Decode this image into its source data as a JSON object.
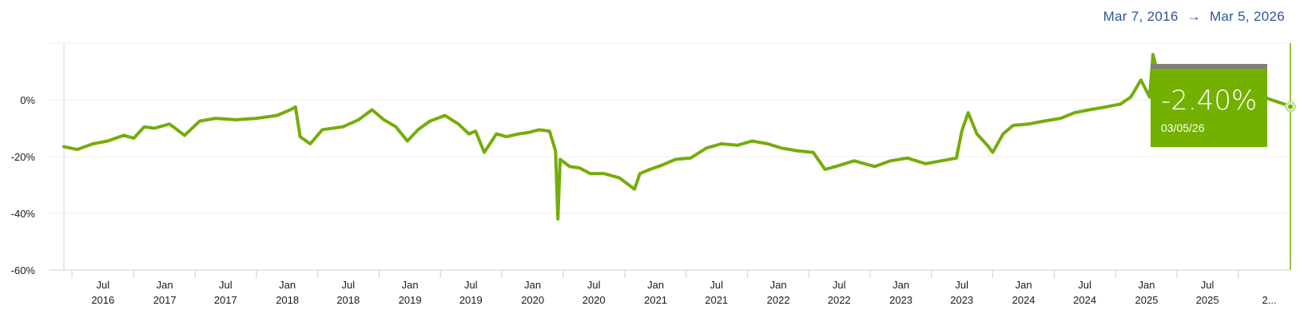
{
  "range": {
    "start": "Mar 7, 2016",
    "arrow": "→",
    "end": "Mar 5, 2026"
  },
  "tooltip": {
    "value": "-2.40%",
    "date": "03/05/26"
  },
  "colors": {
    "line": "#74ad0b",
    "tooltip": "#73b000",
    "tooltip_bar": "#7f7f7f",
    "range_text": "#2f5597"
  },
  "chart_data": {
    "type": "line",
    "y_ticks": [
      "0%",
      "-20%",
      "-40%",
      "-60%"
    ],
    "y_tick_values": [
      0,
      -20,
      -40,
      -60
    ],
    "x_ticks": [
      {
        "date": "2016-07-01",
        "top": "Jul",
        "bottom": "2016"
      },
      {
        "date": "2017-01-01",
        "top": "Jan",
        "bottom": "2017"
      },
      {
        "date": "2017-07-01",
        "top": "Jul",
        "bottom": "2017"
      },
      {
        "date": "2018-01-01",
        "top": "Jan",
        "bottom": "2018"
      },
      {
        "date": "2018-07-01",
        "top": "Jul",
        "bottom": "2018"
      },
      {
        "date": "2019-01-01",
        "top": "Jan",
        "bottom": "2019"
      },
      {
        "date": "2019-07-01",
        "top": "Jul",
        "bottom": "2019"
      },
      {
        "date": "2020-01-01",
        "top": "Jan",
        "bottom": "2020"
      },
      {
        "date": "2020-07-01",
        "top": "Jul",
        "bottom": "2020"
      },
      {
        "date": "2021-01-01",
        "top": "Jan",
        "bottom": "2021"
      },
      {
        "date": "2021-07-01",
        "top": "Jul",
        "bottom": "2021"
      },
      {
        "date": "2022-01-01",
        "top": "Jan",
        "bottom": "2022"
      },
      {
        "date": "2022-07-01",
        "top": "Jul",
        "bottom": "2022"
      },
      {
        "date": "2023-01-01",
        "top": "Jan",
        "bottom": "2023"
      },
      {
        "date": "2023-07-01",
        "top": "Jul",
        "bottom": "2023"
      },
      {
        "date": "2024-01-01",
        "top": "Jan",
        "bottom": "2024"
      },
      {
        "date": "2024-07-01",
        "top": "Jul",
        "bottom": "2024"
      },
      {
        "date": "2025-01-01",
        "top": "Jan",
        "bottom": "2025"
      },
      {
        "date": "2025-07-01",
        "top": "Jul",
        "bottom": "2025"
      },
      {
        "date": "2026-01-01",
        "top": "",
        "bottom": "2..."
      }
    ],
    "x_range": [
      "2016-03-07",
      "2026-03-05"
    ],
    "ylim": [
      -60,
      20
    ],
    "grid": true,
    "series": [
      {
        "points": [
          [
            "2016-03-07",
            -16.5
          ],
          [
            "2016-04-15",
            -17.5
          ],
          [
            "2016-06-01",
            -15.5
          ],
          [
            "2016-07-15",
            -14.5
          ],
          [
            "2016-09-01",
            -12.5
          ],
          [
            "2016-10-01",
            -13.5
          ],
          [
            "2016-11-01",
            -9.5
          ],
          [
            "2016-12-01",
            -10
          ],
          [
            "2017-01-15",
            -8.5
          ],
          [
            "2017-03-01",
            -12.5
          ],
          [
            "2017-04-15",
            -7.5
          ],
          [
            "2017-06-01",
            -6.5
          ],
          [
            "2017-08-01",
            -7
          ],
          [
            "2017-10-01",
            -6.5
          ],
          [
            "2017-12-01",
            -5.5
          ],
          [
            "2018-01-10",
            -3.5
          ],
          [
            "2018-01-25",
            -2.5
          ],
          [
            "2018-02-08",
            -13
          ],
          [
            "2018-03-10",
            -15.5
          ],
          [
            "2018-04-15",
            -10.5
          ],
          [
            "2018-06-15",
            -9.5
          ],
          [
            "2018-08-01",
            -7
          ],
          [
            "2018-09-10",
            -3.5
          ],
          [
            "2018-10-15",
            -7
          ],
          [
            "2018-11-20",
            -9.5
          ],
          [
            "2018-12-24",
            -14.5
          ],
          [
            "2019-01-25",
            -10.5
          ],
          [
            "2019-03-01",
            -7.5
          ],
          [
            "2019-04-15",
            -5.5
          ],
          [
            "2019-05-25",
            -8.5
          ],
          [
            "2019-06-25",
            -12
          ],
          [
            "2019-07-15",
            -11
          ],
          [
            "2019-08-10",
            -18.5
          ],
          [
            "2019-09-15",
            -12
          ],
          [
            "2019-10-15",
            -13
          ],
          [
            "2019-11-20",
            -12
          ],
          [
            "2019-12-20",
            -11.5
          ],
          [
            "2020-01-20",
            -10.5
          ],
          [
            "2020-02-20",
            -11
          ],
          [
            "2020-03-09",
            -18
          ],
          [
            "2020-03-16",
            -42
          ],
          [
            "2020-03-23",
            -21
          ],
          [
            "2020-04-20",
            -23.5
          ],
          [
            "2020-05-20",
            -24
          ],
          [
            "2020-06-20",
            -26
          ],
          [
            "2020-08-01",
            -26
          ],
          [
            "2020-09-15",
            -27.5
          ],
          [
            "2020-10-30",
            -31.5
          ],
          [
            "2020-11-15",
            -26
          ],
          [
            "2020-12-15",
            -24.5
          ],
          [
            "2021-01-20",
            -23
          ],
          [
            "2021-03-01",
            -21
          ],
          [
            "2021-04-15",
            -20.5
          ],
          [
            "2021-06-01",
            -17
          ],
          [
            "2021-07-15",
            -15.5
          ],
          [
            "2021-09-01",
            -16
          ],
          [
            "2021-10-15",
            -14.5
          ],
          [
            "2021-12-01",
            -15.5
          ],
          [
            "2022-01-10",
            -17
          ],
          [
            "2022-03-01",
            -18
          ],
          [
            "2022-04-15",
            -18.5
          ],
          [
            "2022-05-20",
            -24.5
          ],
          [
            "2022-06-20",
            -23.5
          ],
          [
            "2022-08-15",
            -21.5
          ],
          [
            "2022-10-15",
            -23.5
          ],
          [
            "2022-12-01",
            -21.5
          ],
          [
            "2023-01-20",
            -20.5
          ],
          [
            "2023-03-15",
            -22.5
          ],
          [
            "2023-05-01",
            -21.5
          ],
          [
            "2023-06-15",
            -20.5
          ],
          [
            "2023-07-01",
            -11
          ],
          [
            "2023-07-20",
            -4.5
          ],
          [
            "2023-08-15",
            -12
          ],
          [
            "2023-09-15",
            -16
          ],
          [
            "2023-10-01",
            -18.5
          ],
          [
            "2023-11-01",
            -12
          ],
          [
            "2023-12-01",
            -9
          ],
          [
            "2024-01-15",
            -8.5
          ],
          [
            "2024-03-01",
            -7.5
          ],
          [
            "2024-04-20",
            -6.5
          ],
          [
            "2024-06-01",
            -4.5
          ],
          [
            "2024-07-15",
            -3.5
          ],
          [
            "2024-09-01",
            -2.5
          ],
          [
            "2024-10-15",
            -1.5
          ],
          [
            "2024-11-15",
            1
          ],
          [
            "2024-12-15",
            7
          ],
          [
            "2025-01-10",
            1
          ],
          [
            "2025-01-20",
            16
          ],
          [
            "2025-02-15",
            4
          ],
          [
            "2025-04-08",
            -3.5
          ],
          [
            "2025-05-15",
            -1.5
          ],
          [
            "2025-07-01",
            1
          ],
          [
            "2025-08-15",
            3
          ],
          [
            "2025-10-01",
            6
          ],
          [
            "2025-11-15",
            4
          ],
          [
            "2025-12-15",
            1
          ],
          [
            "2026-01-20",
            -0.5
          ],
          [
            "2026-02-15",
            -1.5
          ],
          [
            "2026-03-05",
            -2.4
          ]
        ]
      }
    ]
  }
}
